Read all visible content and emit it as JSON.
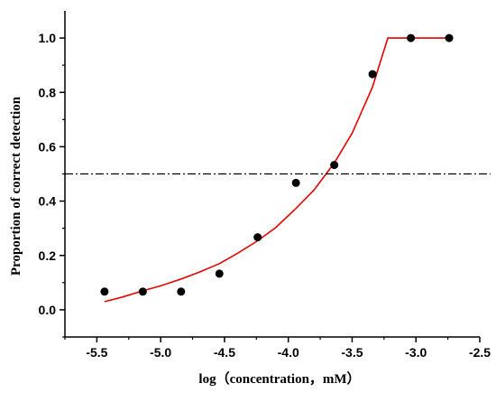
{
  "chart_data": {
    "type": "scatter",
    "title": "",
    "xlabel": "log（concentration，mM）",
    "ylabel": "Proportion of correct detection",
    "xlim": [
      -5.75,
      -2.5
    ],
    "ylim": [
      -0.1,
      1.1
    ],
    "x_ticks": [
      -5.5,
      -5.0,
      -4.5,
      -4.0,
      -3.5,
      -3.0,
      -2.5
    ],
    "x_tick_labels": [
      "-5.5",
      "-5.0",
      "-4.5",
      "-4.0",
      "-3.5",
      "-3.0",
      "-2.5"
    ],
    "y_ticks": [
      0.0,
      0.2,
      0.4,
      0.6,
      0.8,
      1.0
    ],
    "y_tick_labels": [
      "0.0",
      "0.2",
      "0.4",
      "0.6",
      "0.8",
      "1.0"
    ],
    "grid": false,
    "legend": "none",
    "series": [
      {
        "kind": "scatter",
        "color": "#000000",
        "x": [
          -5.44,
          -5.14,
          -4.84,
          -4.54,
          -4.24,
          -3.94,
          -3.64,
          -3.34,
          -3.04,
          -2.74
        ],
        "y": [
          0.067,
          0.067,
          0.067,
          0.133,
          0.267,
          0.467,
          0.533,
          0.867,
          1.0,
          1.0
        ]
      },
      {
        "kind": "fit-line",
        "color": "#e00000",
        "x": [
          -5.44,
          -5.3,
          -5.14,
          -5.0,
          -4.84,
          -4.7,
          -4.54,
          -4.4,
          -4.24,
          -4.1,
          -3.94,
          -3.8,
          -3.64,
          -3.5,
          -3.34,
          -3.26,
          -3.22,
          -2.74
        ],
        "y": [
          0.03,
          0.047,
          0.07,
          0.088,
          0.113,
          0.138,
          0.17,
          0.207,
          0.254,
          0.302,
          0.373,
          0.44,
          0.54,
          0.65,
          0.82,
          0.94,
          1.0,
          1.0
        ]
      },
      {
        "kind": "threshold-line",
        "color": "#000000",
        "y": 0.5
      }
    ]
  }
}
